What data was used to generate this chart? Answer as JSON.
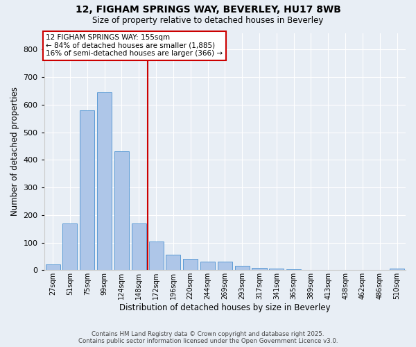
{
  "title1": "12, FIGHAM SPRINGS WAY, BEVERLEY, HU17 8WB",
  "title2": "Size of property relative to detached houses in Beverley",
  "xlabel": "Distribution of detached houses by size in Beverley",
  "ylabel": "Number of detached properties",
  "categories": [
    "27sqm",
    "51sqm",
    "75sqm",
    "99sqm",
    "124sqm",
    "148sqm",
    "172sqm",
    "196sqm",
    "220sqm",
    "244sqm",
    "269sqm",
    "293sqm",
    "317sqm",
    "341sqm",
    "365sqm",
    "389sqm",
    "413sqm",
    "438sqm",
    "462sqm",
    "486sqm",
    "510sqm"
  ],
  "values": [
    20,
    170,
    580,
    645,
    430,
    170,
    103,
    55,
    40,
    30,
    30,
    15,
    8,
    5,
    3,
    1,
    0,
    0,
    0,
    0,
    5
  ],
  "bar_color": "#aec6e8",
  "bar_edge_color": "#5b9bd5",
  "vline_x": 5.5,
  "vline_color": "#cc0000",
  "annotation_title": "12 FIGHAM SPRINGS WAY: 155sqm",
  "annotation_line1": "← 84% of detached houses are smaller (1,885)",
  "annotation_line2": "16% of semi-detached houses are larger (366) →",
  "annotation_box_color": "#cc0000",
  "background_color": "#e8eef5",
  "ylim": [
    0,
    860
  ],
  "yticks": [
    0,
    100,
    200,
    300,
    400,
    500,
    600,
    700,
    800
  ],
  "footer1": "Contains HM Land Registry data © Crown copyright and database right 2025.",
  "footer2": "Contains public sector information licensed under the Open Government Licence v3.0."
}
